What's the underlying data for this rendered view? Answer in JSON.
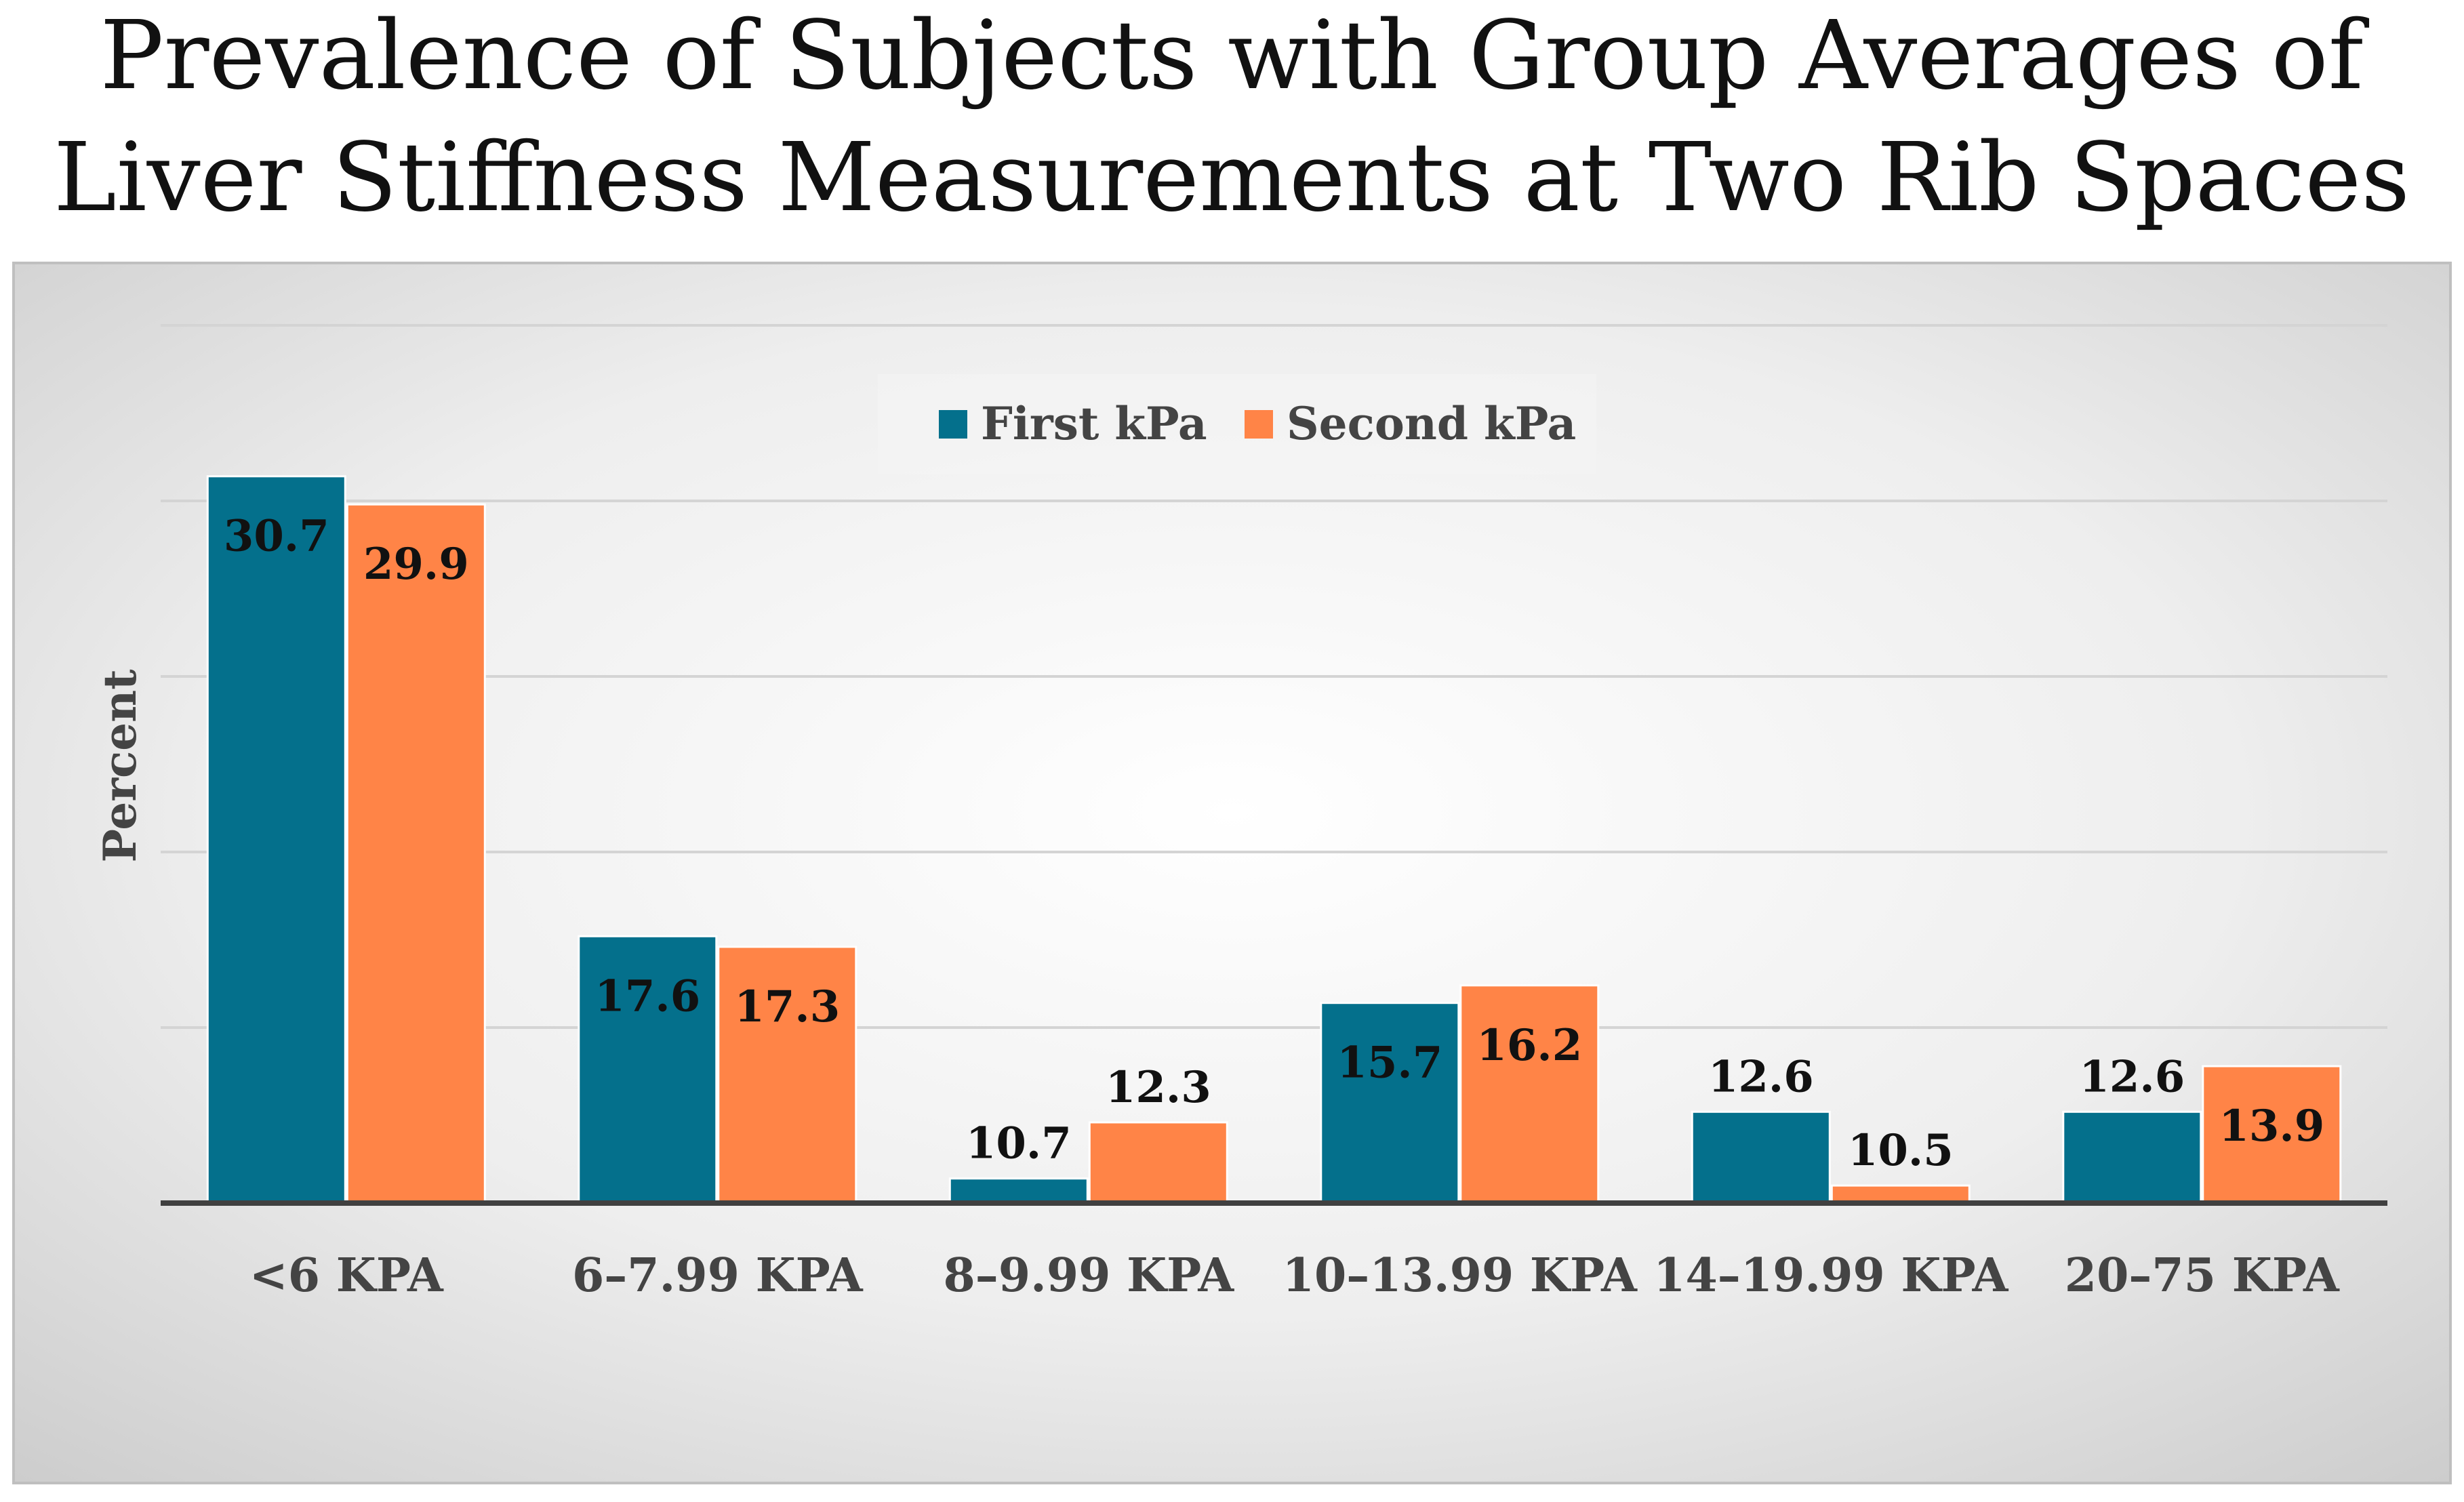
{
  "chart_data": {
    "type": "bar",
    "title": "Prevalence of Subjects with Group Averages of Liver Stiffness Measurements at Two Rib Spaces",
    "title_lines": [
      "Prevalence of Subjects with Group Averages of",
      "Liver Stiffness Measurements at Two Rib Spaces"
    ],
    "xlabel": "",
    "ylabel": "Percent",
    "ylim": [
      0,
      35
    ],
    "ytick_step": 5,
    "grid": true,
    "legend_position": "top-center",
    "categories": [
      "<6 KPA",
      "6–7.99 KPA",
      "8–9.99 KPA",
      "10–13.99 KPA",
      "14–19.99 KPA",
      "20–75 KPA"
    ],
    "series": [
      {
        "name": "First kPa",
        "color": "#04708C",
        "values": [
          30.7,
          17.6,
          10.7,
          15.7,
          12.6,
          12.6
        ],
        "bar_heights": [
          20.7,
          7.6,
          0.7,
          5.7,
          2.6,
          2.6
        ]
      },
      {
        "name": "Second kPa",
        "color": "#FF8447",
        "values": [
          29.9,
          17.3,
          12.3,
          16.2,
          10.5,
          13.9
        ],
        "bar_heights": [
          19.9,
          7.3,
          2.3,
          6.2,
          0.5,
          3.9
        ]
      }
    ],
    "axis_baseline_value": 10
  }
}
